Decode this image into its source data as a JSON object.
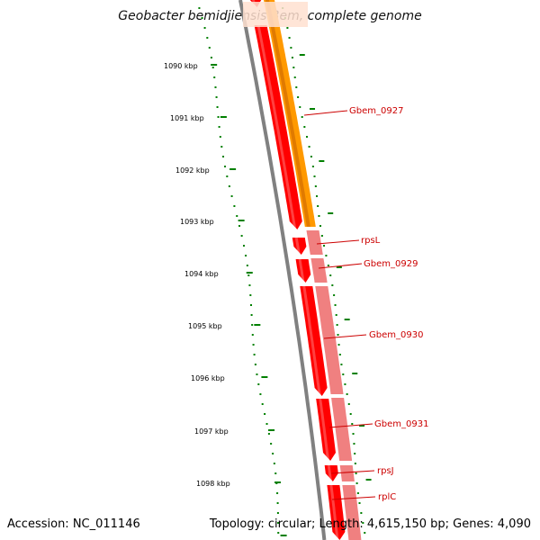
{
  "title": "Geobacter bemidjiensis Bem, complete genome",
  "footer": {
    "accession": "Accession: NC_011146",
    "stats": "Topology: circular; Length: 4,615,150 bp; Genes: 4,090"
  },
  "scale": {
    "unit": "kbp",
    "ticks": [
      "1090 kbp",
      "1091 kbp",
      "1092 kbp",
      "1093 kbp",
      "1094 kbp",
      "1095 kbp",
      "1096 kbp",
      "1097 kbp",
      "1098 kbp"
    ]
  },
  "genes": [
    {
      "name": "Gbem_0927"
    },
    {
      "name": "rpsL"
    },
    {
      "name": "Gbem_0929"
    },
    {
      "name": "Gbem_0930"
    },
    {
      "name": "Gbem_0931"
    },
    {
      "name": "rpsJ"
    },
    {
      "name": "rplC"
    }
  ],
  "colors": {
    "forward_cds": "#ff0000",
    "orf_track": "#f08080",
    "highlight_track": "#ff9900",
    "backbone": "#808080",
    "gc_dots": "#008000",
    "label": "#cc0000"
  }
}
